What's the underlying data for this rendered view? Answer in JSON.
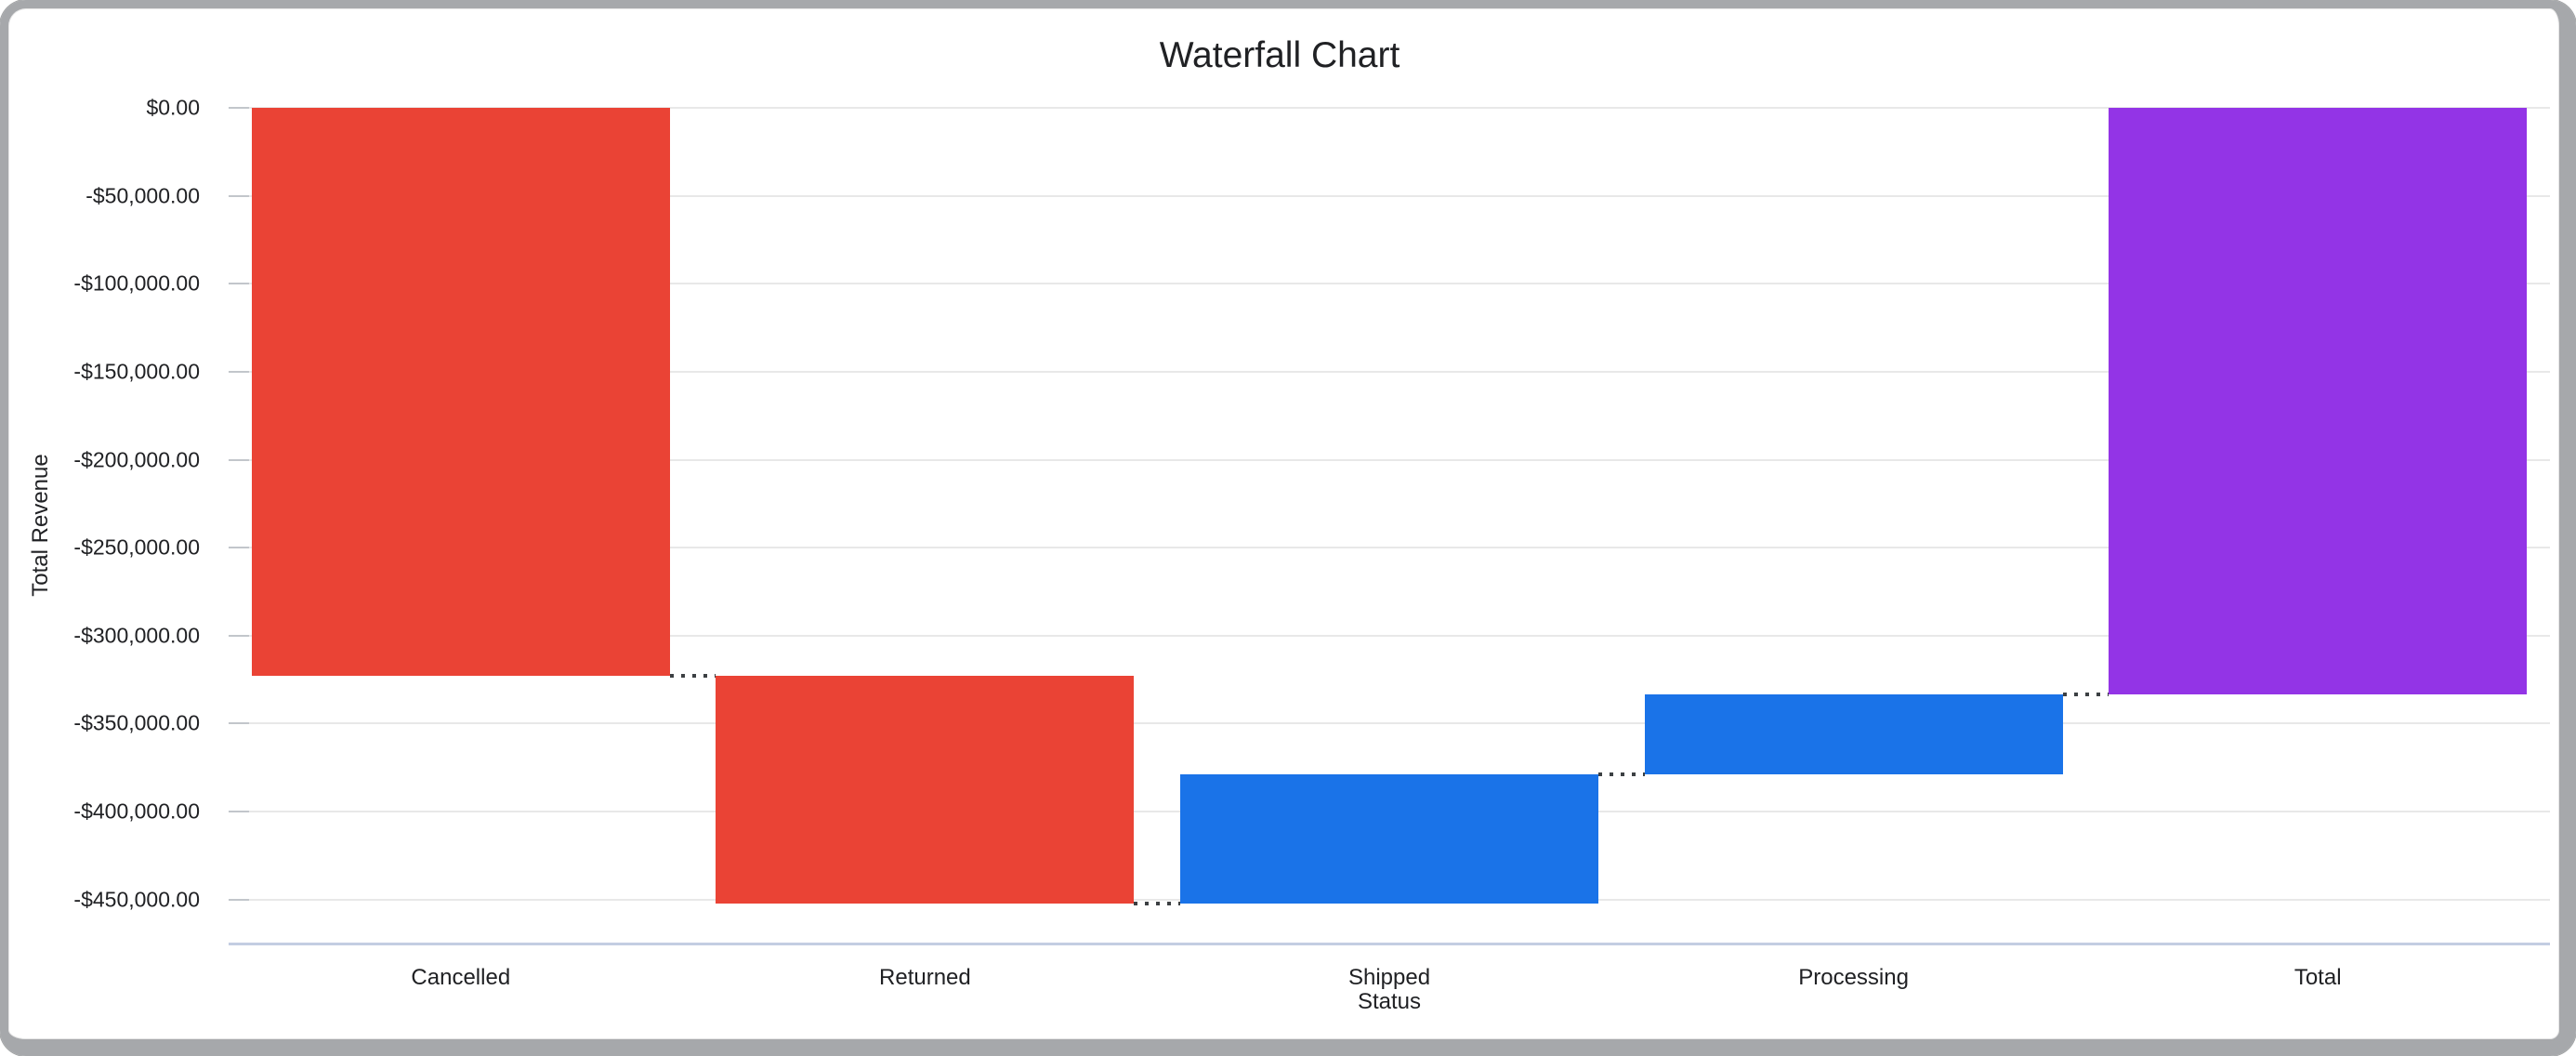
{
  "chart_data": {
    "type": "bar",
    "subtype": "waterfall",
    "title": "Waterfall Chart",
    "xlabel": "Status",
    "ylabel": "Total Revenue",
    "categories": [
      "Cancelled",
      "Returned",
      "Shipped",
      "Processing",
      "Total"
    ],
    "series": [
      {
        "name": "Total Revenue",
        "bars": [
          {
            "category": "Cancelled",
            "start": 0,
            "end": -323000,
            "change": -323000,
            "role": "decrease",
            "color": "#EA4335"
          },
          {
            "category": "Returned",
            "start": -323000,
            "end": -452350,
            "change": -129350,
            "role": "decrease",
            "color": "#EA4335"
          },
          {
            "category": "Shipped",
            "start": -452350,
            "end": -378750,
            "change": 73600,
            "role": "increase",
            "color": "#1A73E8"
          },
          {
            "category": "Processing",
            "start": -378750,
            "end": -333200,
            "change": 45550,
            "role": "increase",
            "color": "#1A73E8"
          },
          {
            "category": "Total",
            "start": 0,
            "end": -333200,
            "change": -333200,
            "role": "total",
            "color": "#9334E6"
          }
        ]
      }
    ],
    "y_ticks": [
      {
        "value": 0,
        "label": "$0.00"
      },
      {
        "value": -50000,
        "label": "-$50,000.00"
      },
      {
        "value": -100000,
        "label": "-$100,000.00"
      },
      {
        "value": -150000,
        "label": "-$150,000.00"
      },
      {
        "value": -200000,
        "label": "-$200,000.00"
      },
      {
        "value": -250000,
        "label": "-$250,000.00"
      },
      {
        "value": -300000,
        "label": "-$300,000.00"
      },
      {
        "value": -350000,
        "label": "-$350,000.00"
      },
      {
        "value": -400000,
        "label": "-$400,000.00"
      },
      {
        "value": -450000,
        "label": "-$450,000.00"
      }
    ],
    "ylim": [
      -475000,
      0
    ],
    "grid": true,
    "legend": "none",
    "connectors": "dotted"
  },
  "style": {
    "text_color": "#202124",
    "grid_color": "#E8E8E8",
    "axis_baseline_color": "#C3CDE2",
    "connector_color": "#3C4043",
    "frame_color": "#A6A8AB",
    "background": "#FFFFFF"
  }
}
